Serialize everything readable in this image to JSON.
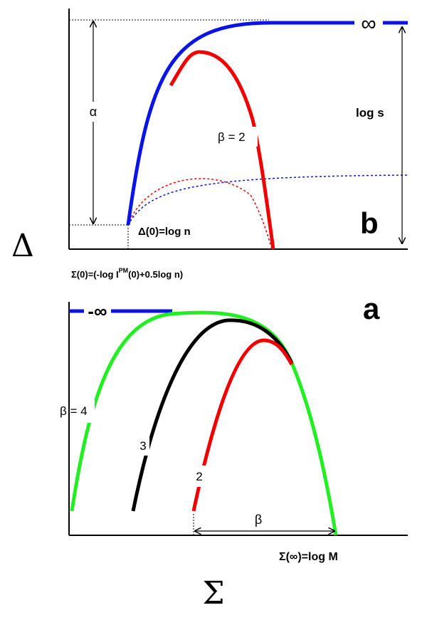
{
  "colors": {
    "blue": "#0a14e6",
    "red": "#f00000",
    "green": "#22ee22",
    "black": "#000000"
  },
  "labels": {
    "y_axis_symbol": "Δ",
    "x_axis_symbol": "Σ",
    "panel_b": "b",
    "panel_a": "a",
    "infinity": "∞",
    "minus_infinity": "-∞",
    "alpha": "α",
    "log_s": "log s",
    "beta_2_top": "β =  2",
    "delta0": "Δ(0)=log n",
    "sigma0_part1": "Σ(0)=(-log I",
    "sigma0_sup": "PM",
    "sigma0_part2": "(0)+0.5log n)",
    "beta_4": "β =  4",
    "curve_3": "3",
    "curve_2": "2",
    "beta_bottom": "β",
    "sigma_inf": "Σ(∞)=log M"
  }
}
